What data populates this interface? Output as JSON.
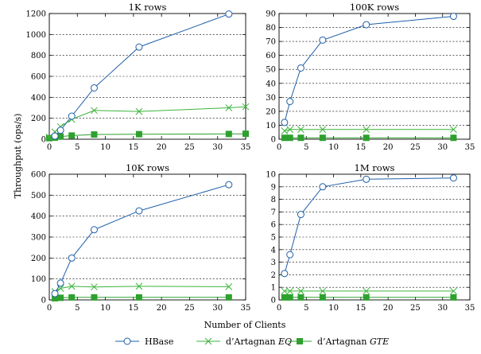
{
  "colors": {
    "hbase": "#1f5fa8",
    "eq": "#3cb43c",
    "gte": "#2ea02e"
  },
  "chart_data": [
    {
      "type": "line",
      "title": "1K rows",
      "xlim": [
        0,
        35
      ],
      "ylim": [
        0,
        1200
      ],
      "xticks": [
        0,
        5,
        10,
        15,
        20,
        25,
        30,
        35
      ],
      "yticks": [
        0,
        200,
        400,
        600,
        800,
        1000,
        1200
      ],
      "grid": true,
      "series": [
        {
          "name": "HBase",
          "marker": "circle",
          "x": [
            1,
            2,
            4,
            8,
            16,
            32
          ],
          "y": [
            30,
            85,
            220,
            490,
            880,
            1195
          ]
        },
        {
          "name": "d'Artagnan EQ",
          "marker": "x",
          "x": [
            0,
            1,
            2,
            4,
            8,
            16,
            32,
            35
          ],
          "y": [
            20,
            70,
            120,
            190,
            275,
            265,
            300,
            310
          ]
        },
        {
          "name": "d'Artagnan GTE",
          "marker": "square",
          "x": [
            0,
            1,
            2,
            4,
            8,
            16,
            32,
            35
          ],
          "y": [
            10,
            15,
            25,
            35,
            45,
            48,
            50,
            52
          ]
        }
      ]
    },
    {
      "type": "line",
      "title": "100K rows",
      "xlim": [
        0,
        35
      ],
      "ylim": [
        0,
        90
      ],
      "xticks": [
        0,
        5,
        10,
        15,
        20,
        25,
        30,
        35
      ],
      "yticks": [
        0,
        10,
        20,
        30,
        40,
        50,
        60,
        70,
        80,
        90
      ],
      "grid": true,
      "series": [
        {
          "name": "HBase",
          "marker": "circle",
          "x": [
            1,
            2,
            4,
            8,
            16,
            32
          ],
          "y": [
            12,
            27,
            51,
            71,
            82,
            88
          ]
        },
        {
          "name": "d'Artagnan EQ",
          "marker": "x",
          "x": [
            1,
            2,
            4,
            8,
            16,
            32
          ],
          "y": [
            6,
            7,
            7,
            7,
            7,
            7
          ]
        },
        {
          "name": "d'Artagnan GTE",
          "marker": "square",
          "x": [
            1,
            2,
            4,
            8,
            16,
            32
          ],
          "y": [
            1,
            1,
            1,
            1,
            1,
            1
          ]
        }
      ]
    },
    {
      "type": "line",
      "title": "10K rows",
      "xlim": [
        0,
        35
      ],
      "ylim": [
        0,
        600
      ],
      "xticks": [
        0,
        5,
        10,
        15,
        20,
        25,
        30,
        35
      ],
      "yticks": [
        0,
        100,
        200,
        300,
        400,
        500,
        600
      ],
      "grid": true,
      "series": [
        {
          "name": "HBase",
          "marker": "circle",
          "x": [
            1,
            2,
            4,
            8,
            16,
            32
          ],
          "y": [
            30,
            80,
            200,
            335,
            425,
            550
          ]
        },
        {
          "name": "d'Artagnan EQ",
          "marker": "x",
          "x": [
            1,
            2,
            4,
            8,
            16,
            32
          ],
          "y": [
            40,
            55,
            65,
            62,
            65,
            63
          ]
        },
        {
          "name": "d'Artagnan GTE",
          "marker": "square",
          "x": [
            1,
            2,
            4,
            8,
            16,
            32
          ],
          "y": [
            8,
            10,
            12,
            12,
            12,
            12
          ]
        }
      ]
    },
    {
      "type": "line",
      "title": "1M rows",
      "xlim": [
        0,
        35
      ],
      "ylim": [
        0,
        10
      ],
      "xticks": [
        0,
        5,
        10,
        15,
        20,
        25,
        30,
        35
      ],
      "yticks": [
        0,
        1,
        2,
        3,
        4,
        5,
        6,
        7,
        8,
        9,
        10
      ],
      "grid": true,
      "series": [
        {
          "name": "HBase",
          "marker": "circle",
          "x": [
            1,
            2,
            4,
            8,
            16,
            32
          ],
          "y": [
            2.1,
            3.6,
            6.8,
            9.0,
            9.6,
            9.7
          ]
        },
        {
          "name": "d'Artagnan EQ",
          "marker": "x",
          "x": [
            1,
            2,
            4,
            8,
            16,
            32
          ],
          "y": [
            0.7,
            0.7,
            0.7,
            0.7,
            0.7,
            0.7
          ]
        },
        {
          "name": "d'Artagnan GTE",
          "marker": "square",
          "x": [
            1,
            2,
            4,
            8,
            16,
            32
          ],
          "y": [
            0.2,
            0.2,
            0.2,
            0.2,
            0.2,
            0.2
          ]
        }
      ]
    }
  ],
  "labels": {
    "ylabel": "Throughput (ops/s)",
    "xlabel": "Number of Clients"
  },
  "legend": {
    "position": "bottom-center",
    "items": [
      {
        "label": "HBase",
        "italic": "",
        "marker": "circle",
        "color_key": "hbase"
      },
      {
        "label": "d’Artagnan ",
        "italic": "EQ",
        "marker": "x",
        "color_key": "eq"
      },
      {
        "label": "d’Artagnan ",
        "italic": "GTE",
        "marker": "square",
        "color_key": "gte"
      }
    ]
  }
}
